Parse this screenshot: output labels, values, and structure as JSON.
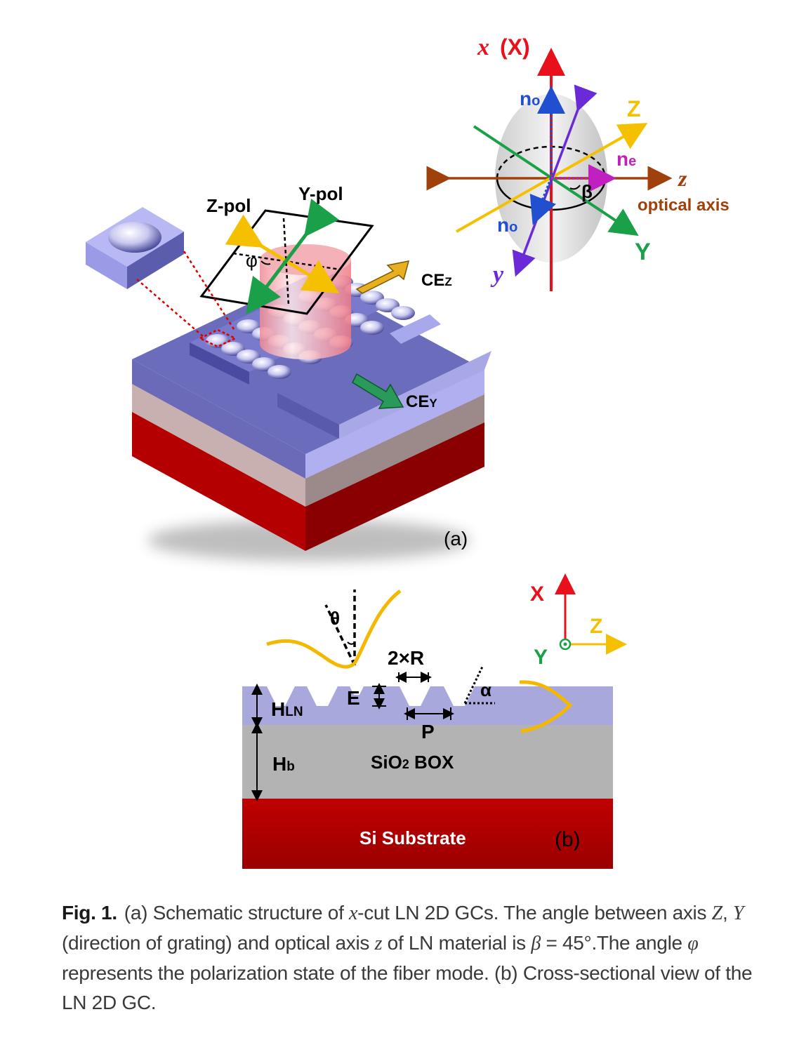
{
  "panel_a": {
    "label": "(a)",
    "z_pol": "Z-pol",
    "y_pol": "Y-pol",
    "phi": "φ",
    "ce_z": "CE",
    "ce_z_sub": "Z",
    "ce_y": "CE",
    "ce_y_sub": "Y",
    "axis_x": "x",
    "axis_x_cap": "(X)",
    "axis_z_cap": "Z",
    "axis_z": "z",
    "optical_axis": "optical axis",
    "axis_y_cap": "Y",
    "axis_y": "y",
    "n_o_top": "n",
    "n_o_top_sub": "o",
    "n_e": "n",
    "n_e_sub": "e",
    "n_o_bottom": "n",
    "n_o_bottom_sub": "o",
    "beta": "β"
  },
  "panel_b": {
    "label": "(b)",
    "theta": "θ",
    "two_r": "2×R",
    "e": "E",
    "alpha": "α",
    "p": "P",
    "h_ln": "H",
    "h_ln_sub": "LN",
    "h_b": "H",
    "h_b_sub": "b",
    "sio2": "SiO",
    "sio2_sub": "2",
    "sio2_rest": " BOX",
    "si_substrate": "Si Substrate",
    "axis_x": "X",
    "axis_z": "Z",
    "axis_y": "Y"
  },
  "colors": {
    "ln_blue": "#6a6ab8",
    "ln_light": "#a9a9e0",
    "sio2_gray": "#b5b5b5",
    "si_red": "#c00000",
    "axis_red": "#e8101a",
    "axis_z_orange": "#f5c000",
    "axis_y_green": "#1aa048",
    "optical_brown": "#a0400a",
    "purple": "#6a2ad8",
    "no_blue": "#2050d0",
    "ne_magenta": "#c020c0"
  },
  "caption": {
    "fig_label": "Fig. 1.",
    "part1": "(a) Schematic structure of ",
    "x_italic": "x",
    "part2": "-cut LN 2D GCs. The angle between axis ",
    "Z_italic": "Z",
    "part3": ", ",
    "Y_italic": "Y",
    "part4": " (direction of grating) and optical axis ",
    "z_italic": "z",
    "part5": " of LN material is ",
    "beta_italic": "β",
    "part6": " = 45°.The angle ",
    "phi_italic": "φ",
    "part7": " represents the polarization state of the fiber mode. (b) Cross-sectional view of the LN 2D GC."
  }
}
